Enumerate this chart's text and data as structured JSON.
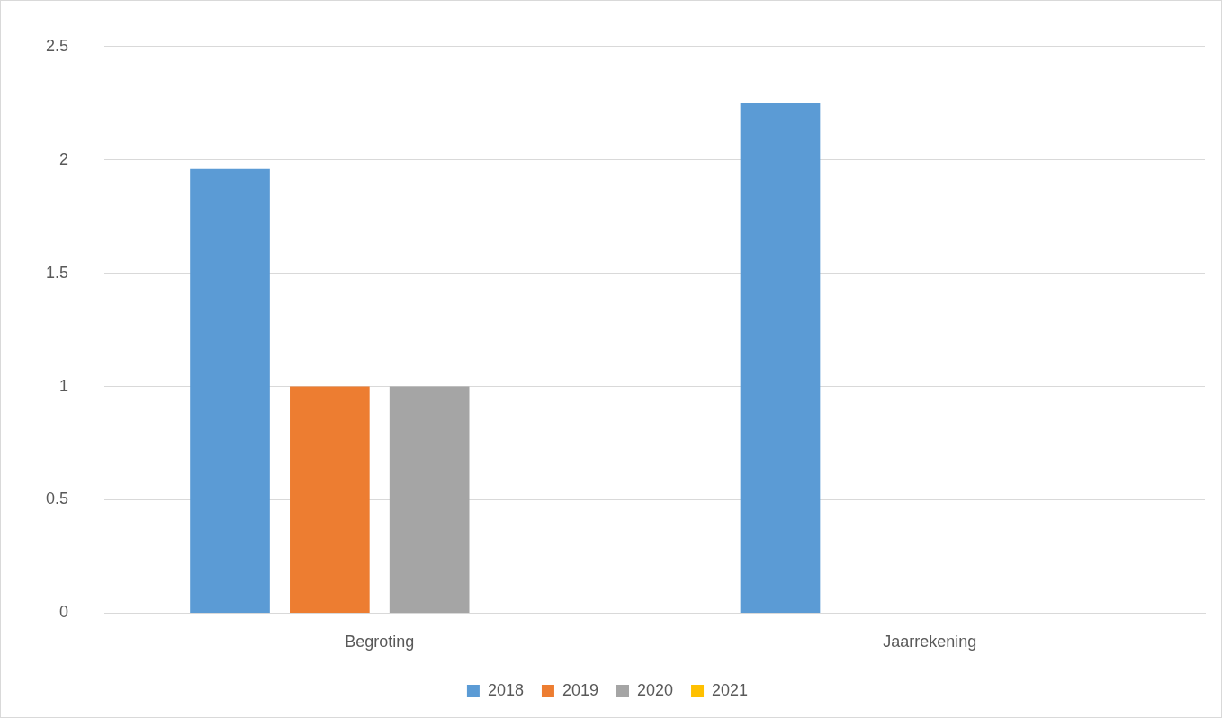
{
  "chart_data": {
    "type": "bar",
    "categories": [
      "Begroting",
      "Jaarrekening"
    ],
    "series": [
      {
        "name": "2018",
        "color": "#5b9bd5",
        "values": [
          1.96,
          2.25
        ]
      },
      {
        "name": "2019",
        "color": "#ed7d31",
        "values": [
          1,
          null
        ]
      },
      {
        "name": "2020",
        "color": "#a5a5a5",
        "values": [
          1,
          null
        ]
      },
      {
        "name": "2021",
        "color": "#ffc000",
        "values": [
          null,
          null
        ]
      }
    ],
    "ylim": [
      0,
      2.5
    ],
    "yticks": [
      0,
      0.5,
      1,
      1.5,
      2,
      2.5
    ],
    "grid": "y",
    "legend": "bottom"
  }
}
